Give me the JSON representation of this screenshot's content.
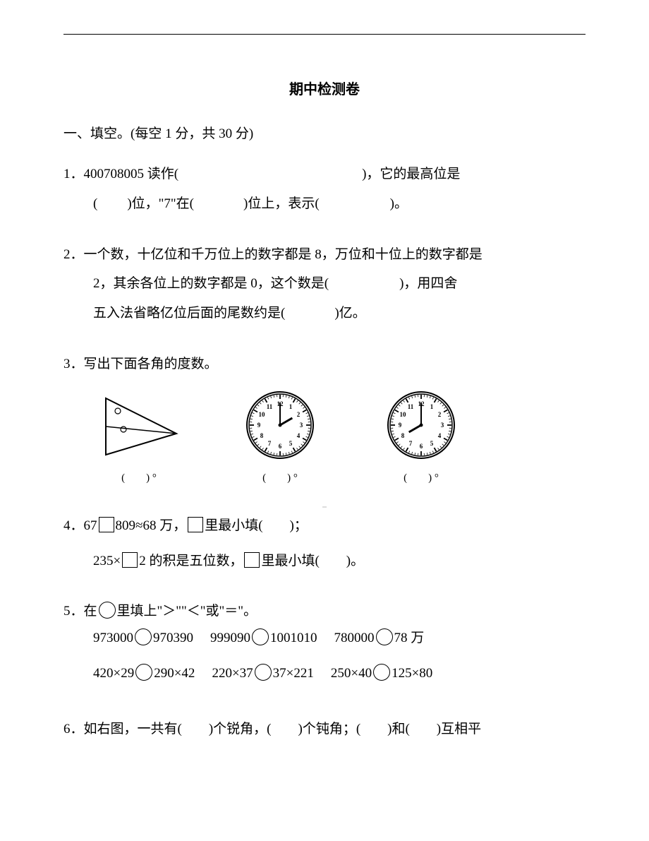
{
  "title": "期中检测卷",
  "section1": {
    "header": "一、填空。(每空 1 分，共 30 分)"
  },
  "q1": {
    "num": "1．",
    "text_a": "400708005 读作(",
    "text_b": ")，它的最高位是",
    "text_c": "(",
    "text_d": ")位，\"7\"在(",
    "text_e": ")位上，表示(",
    "text_f": ")。"
  },
  "q2": {
    "num": "2．",
    "text_a": "一个数，十亿位和千万位上的数字都是 8，万位和十位上的数字都是",
    "text_b": "2，其余各位上的数字都是 0，这个数是(",
    "text_c": ")，用四舍",
    "text_d": "五入法省略亿位后面的尾数约是(",
    "text_e": ")亿。"
  },
  "q3": {
    "num": "3．",
    "text": "写出下面各角的度数。",
    "caption_a": "(　　) °",
    "caption_b": "(　　) °",
    "caption_c": "(　　) °",
    "clock_b": {
      "hour": 2,
      "minute": 0
    },
    "clock_c": {
      "hour": 8,
      "minute": 0
    },
    "triangle": {
      "stroke": "#000000",
      "fill": "none"
    }
  },
  "q4": {
    "num": "4．",
    "text_a": "67",
    "text_b": "809≈68 万，",
    "text_c": "里最小填(　　)；",
    "text_d": "235×",
    "text_e": "2 的积是五位数，",
    "text_f": "里最小填(　　)。"
  },
  "q5": {
    "num": "5．",
    "text_a": "在",
    "text_b": "里填上\"＞\"\"＜\"或\"＝\"。",
    "row1": {
      "a_left": "973000",
      "a_right": "970390",
      "b_left": "999090",
      "b_right": "1001010",
      "c_left": "780000",
      "c_right": "78 万"
    },
    "row2": {
      "a_left": "420×29",
      "a_right": "290×42",
      "b_left": "220×37",
      "b_right": "37×221",
      "c_left": "250×40",
      "c_right": "125×80"
    }
  },
  "q6": {
    "num": "6．",
    "text": "如右图，一共有(　　)个锐角，(　　)个钝角；(　　)和(　　)互相平"
  },
  "clock_numbers": [
    "12",
    "1",
    "2",
    "3",
    "4",
    "5",
    "6",
    "7",
    "8",
    "9",
    "10",
    "11"
  ],
  "clock_style": {
    "face_fill": "#ffffff",
    "face_stroke": "#000000",
    "tick_color": "#000000",
    "hand_color": "#000000",
    "number_fontsize": 9
  }
}
